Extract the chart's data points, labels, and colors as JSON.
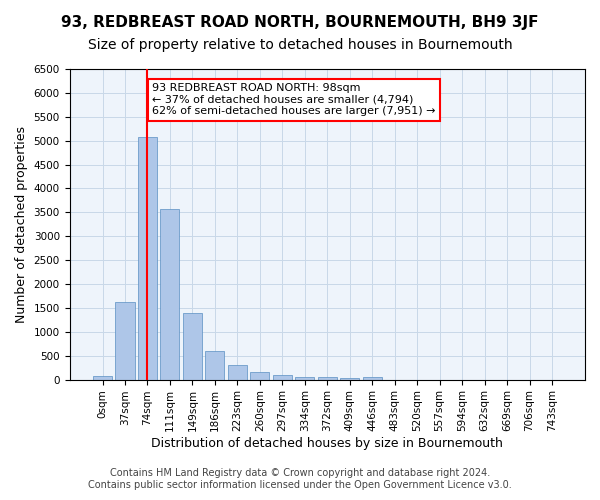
{
  "title": "93, REDBREAST ROAD NORTH, BOURNEMOUTH, BH9 3JF",
  "subtitle": "Size of property relative to detached houses in Bournemouth",
  "xlabel": "Distribution of detached houses by size in Bournemouth",
  "ylabel": "Number of detached properties",
  "footer_line1": "Contains HM Land Registry data © Crown copyright and database right 2024.",
  "footer_line2": "Contains public sector information licensed under the Open Government Licence v3.0.",
  "bin_labels": [
    "0sqm",
    "37sqm",
    "74sqm",
    "111sqm",
    "149sqm",
    "186sqm",
    "223sqm",
    "260sqm",
    "297sqm",
    "334sqm",
    "372sqm",
    "409sqm",
    "446sqm",
    "483sqm",
    "520sqm",
    "557sqm",
    "594sqm",
    "632sqm",
    "669sqm",
    "706sqm",
    "743sqm"
  ],
  "bar_values": [
    70,
    1620,
    5080,
    3580,
    1400,
    590,
    300,
    150,
    90,
    50,
    60,
    30,
    60,
    0,
    0,
    0,
    0,
    0,
    0,
    0,
    0
  ],
  "bar_color": "#aec6e8",
  "bar_edge_color": "#5a8fc2",
  "grid_color": "#c8d8e8",
  "background_color": "#eef4fb",
  "vline_x": 2,
  "annotation_text": "93 REDBREAST ROAD NORTH: 98sqm\n← 37% of detached houses are smaller (4,794)\n62% of semi-detached houses are larger (7,951) →",
  "annotation_box_color": "white",
  "annotation_box_edge_color": "red",
  "vline_color": "red",
  "ylim": [
    0,
    6500
  ],
  "title_fontsize": 11,
  "subtitle_fontsize": 10,
  "axis_label_fontsize": 9,
  "tick_fontsize": 7.5,
  "annotation_fontsize": 8,
  "footer_fontsize": 7
}
